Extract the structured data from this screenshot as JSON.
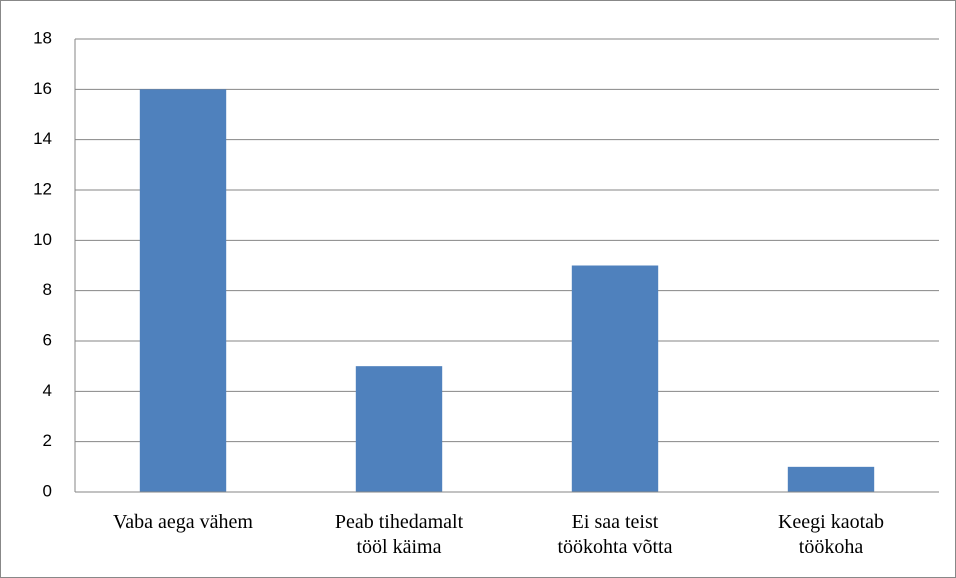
{
  "chart_data": {
    "type": "bar",
    "categories": [
      "Vaba aega vähem",
      "Peab tihedamalt\ntööl käima",
      "Ei saa teist\ntöökohta võtta",
      "Keegi kaotab\ntöökoha"
    ],
    "values": [
      16,
      5,
      9,
      1
    ],
    "color": "#4f81bd",
    "ylim": [
      0,
      18
    ],
    "yticks": [
      0,
      2,
      4,
      6,
      8,
      10,
      12,
      14,
      16,
      18
    ],
    "grid": true
  }
}
